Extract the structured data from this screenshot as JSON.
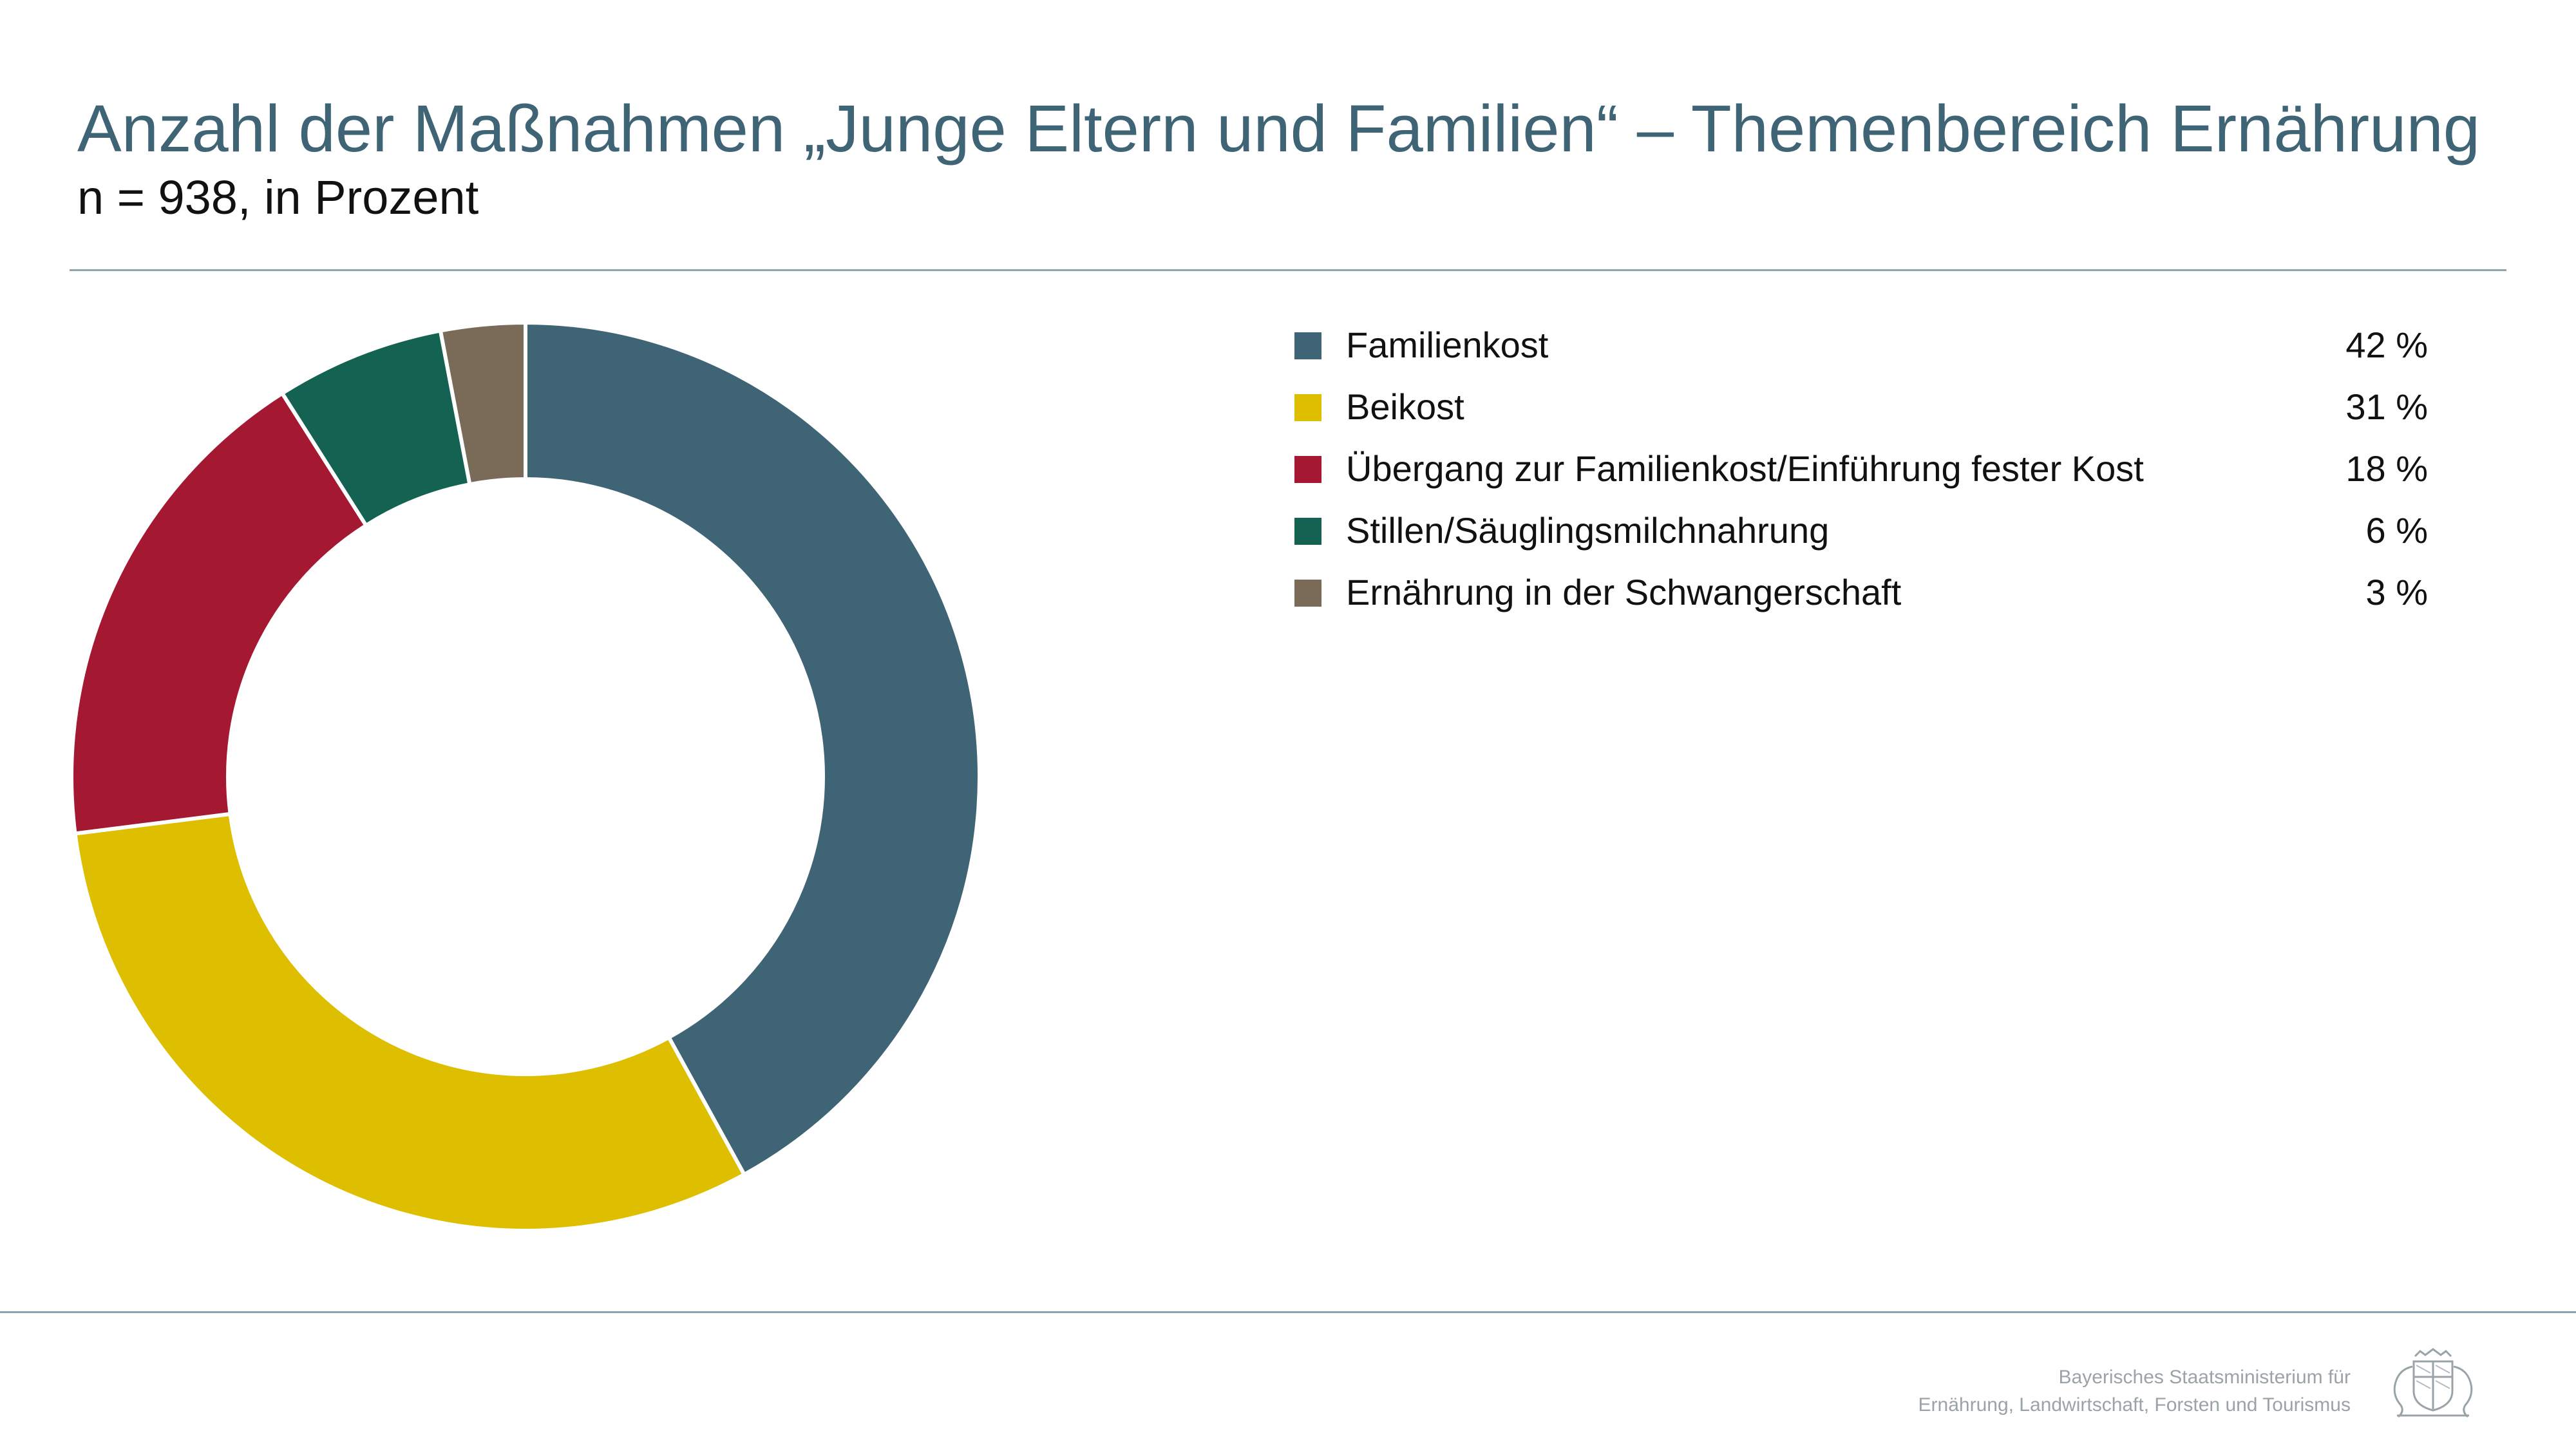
{
  "header": {
    "title": "Anzahl der Maßnahmen „Junge Eltern und Familien“ – Themenbereich Ernährung",
    "subtitle": "n = 938, in Prozent"
  },
  "chart_data": {
    "type": "pie",
    "style": "donut",
    "title": "Anzahl der Maßnahmen „Junge Eltern und Familien“ – Themenbereich Ernährung",
    "subtitle": "n = 938, in Prozent",
    "legend_position": "right",
    "categories": [
      "Familienkost",
      "Beikost",
      "Übergang zur Familienkost/Einführung fester Kost",
      "Stillen/Säuglingsmilchnahrung",
      "Ernährung in der Schwangerschaft"
    ],
    "values": [
      42,
      31,
      18,
      6,
      3
    ],
    "value_labels": [
      "42 %",
      "31 %",
      "18 %",
      "6 %",
      "3 %"
    ],
    "colors": [
      "#3e6475",
      "#ddbf00",
      "#a51832",
      "#146352",
      "#7a6a58"
    ]
  },
  "footer": {
    "line1": "Bayerisches Staatsministerium für",
    "line2": "Ernährung, Landwirtschaft, Forsten und Tourismus",
    "logo_icon": "bavarian-coat-of-arms-icon"
  }
}
